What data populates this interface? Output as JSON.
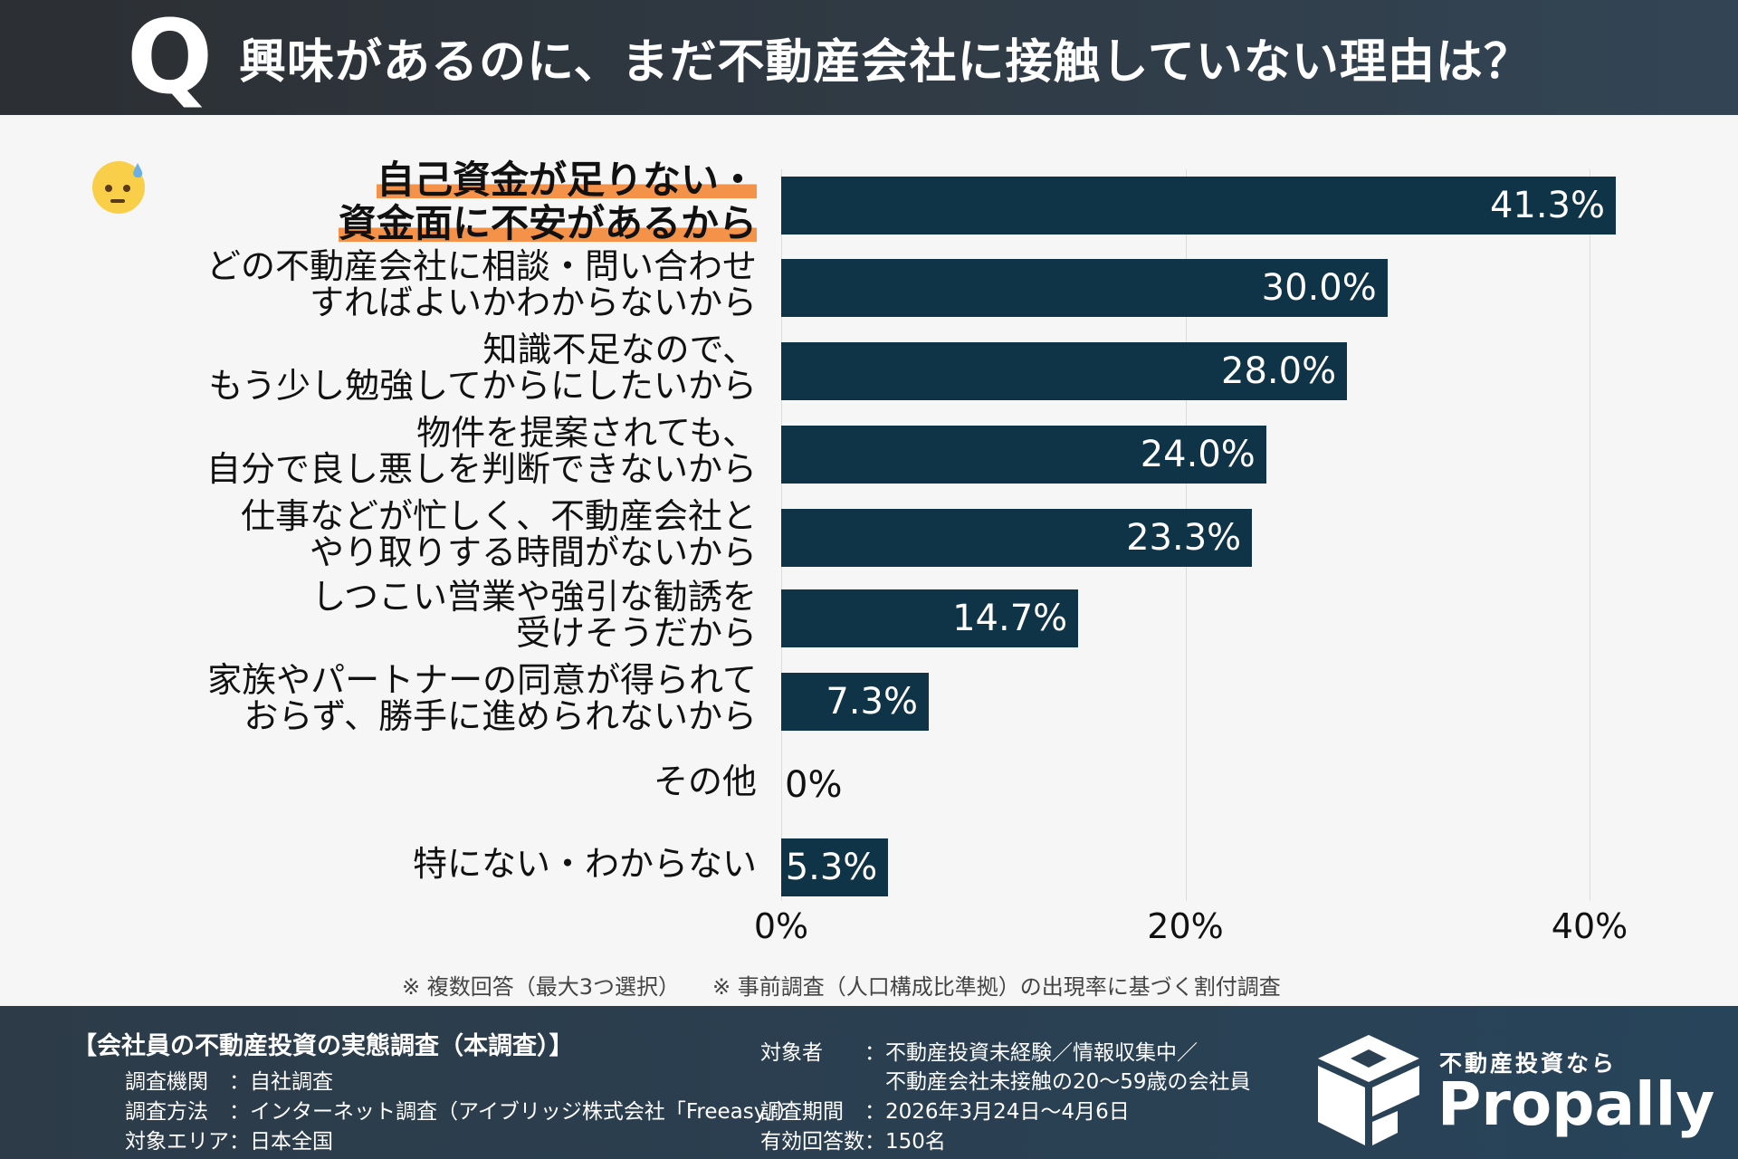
{
  "header": {
    "q": "Q",
    "title": "興味があるのに、まだ不動産会社に接触していない理由は？"
  },
  "chart_data": {
    "type": "bar",
    "orientation": "horizontal",
    "categories": [
      "自己資金が足りない・\n資金面に不安があるから",
      "どの不動産会社に相談・問い合わせ\nすればよいかわからないから",
      "知識不足なので、\nもう少し勉強してからにしたいから",
      "物件を提案されても、\n自分で良し悪しを判断できないから",
      "仕事などが忙しく、不動産会社と\nやり取りする時間がないから",
      "しつこい営業や強引な勧誘を\n受けそうだから",
      "家族やパートナーの同意が得られて\nおらず、勝手に進められないから",
      "その他",
      "特にない・わからない"
    ],
    "values": [
      41.3,
      30.0,
      28.0,
      24.0,
      23.3,
      14.7,
      7.3,
      0,
      5.3
    ],
    "data_labels": [
      "41.3%",
      "30.0%",
      "28.0%",
      "24.0%",
      "23.3%",
      "14.7%",
      "7.3%",
      "0%",
      "5.3%"
    ],
    "xticks": [
      "0%",
      "20%",
      "40%"
    ],
    "xlim": [
      0,
      40
    ],
    "grid": true,
    "highlight_index": 0,
    "bar_color": "#0f3347",
    "highlight_color": "#f5924a"
  },
  "notes": "※ 複数回答（最大3つ選択）　　※ 事前調査（人口構成比準拠）の出現率に基づく割付調査",
  "footer": {
    "title": "【会社員の不動産投資の実態調査（本調査）】",
    "left": [
      "調査機関　：自社調査",
      "調査方法　：インターネット調査（アイブリッジ株式会社「Freeasy」）",
      "対象エリア：日本全国"
    ],
    "right": [
      "対象者　　：不動産投資未経験／情報収集中／",
      "　　　　　　不動産会社未接触の20～59歳の会社員",
      "調査期間　：2026年3月24日～4月6日",
      "有効回答数：150名"
    ],
    "brand_sub": "不動産投資なら",
    "brand": "Propally"
  },
  "icons": {
    "emoji": "sad-sweat-face-icon",
    "logo": "propally-box-logo"
  }
}
